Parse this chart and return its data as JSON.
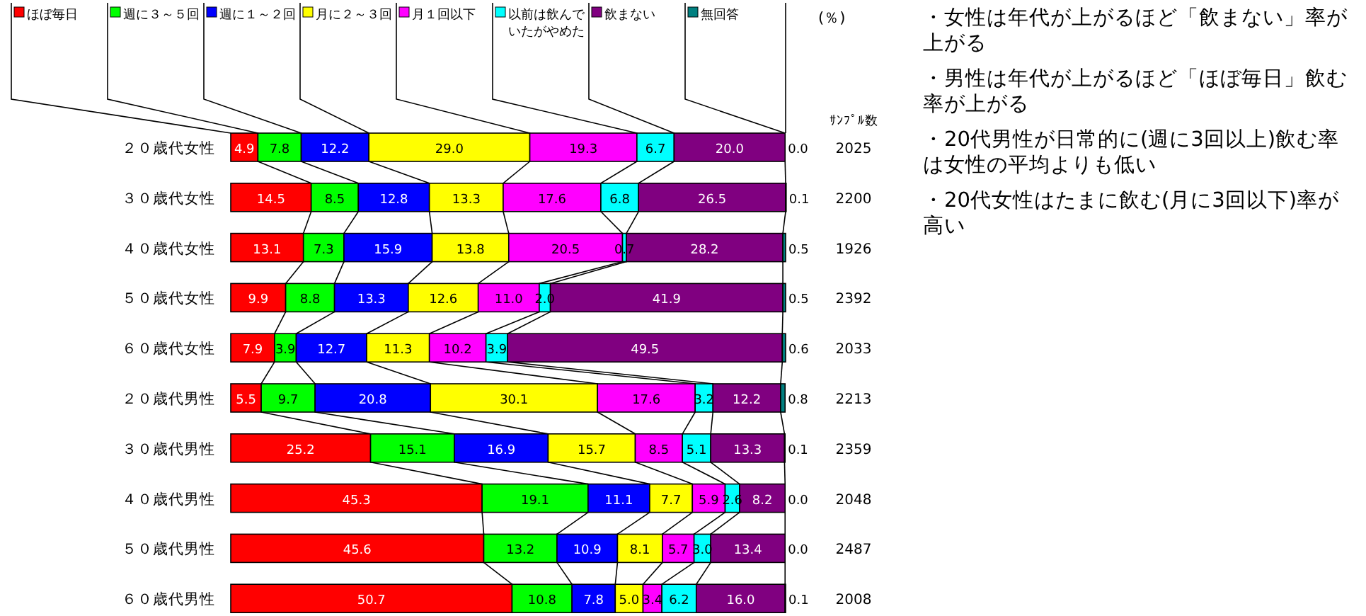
{
  "chart_data": {
    "type": "bar",
    "orientation": "horizontal",
    "stacked": true,
    "legend": "top",
    "tick_labels": "y",
    "xlim": [
      0,
      100
    ],
    "categories": [
      "２０歳代女性",
      "３０歳代女性",
      "４０歳代女性",
      "５０歳代女性",
      "６０歳代女性",
      "２０歳代男性",
      "３０歳代男性",
      "４０歳代男性",
      "５０歳代男性",
      "６０歳代男性"
    ],
    "series": [
      {
        "name": "ほぼ毎日",
        "color": "#ff0000",
        "values": [
          4.9,
          14.5,
          13.1,
          9.9,
          7.9,
          5.5,
          25.2,
          45.3,
          45.6,
          50.7
        ],
        "value_labels": [
          "4.9",
          "14.5",
          "13.1",
          "9.9",
          "7.9",
          "5.5",
          "25.2",
          "45.3",
          "45.6",
          "50.7"
        ]
      },
      {
        "name": "週に３～５回",
        "color": "#00ff00",
        "values": [
          7.8,
          8.5,
          7.3,
          8.8,
          3.9,
          9.7,
          15.1,
          19.1,
          13.2,
          10.8
        ],
        "value_labels": [
          "7.8",
          "8.5",
          "7.3",
          "8.8",
          "3.9",
          "9.7",
          "15.1",
          "19.1",
          "13.2",
          "10.8"
        ]
      },
      {
        "name": "週に１～２回",
        "color": "#0000ff",
        "values": [
          12.2,
          12.8,
          15.9,
          13.3,
          12.7,
          20.8,
          16.9,
          11.1,
          10.9,
          7.8
        ],
        "value_labels": [
          "12.2",
          "12.8",
          "15.9",
          "13.3",
          "12.7",
          "20.8",
          "16.9",
          "11.1",
          "10.9",
          "7.8"
        ]
      },
      {
        "name": "月に２～３回",
        "color": "#ffff00",
        "values": [
          29.0,
          13.3,
          13.8,
          12.6,
          11.3,
          30.1,
          15.7,
          7.7,
          8.1,
          5.0
        ],
        "value_labels": [
          "29.0",
          "13.3",
          "13.8",
          "12.6",
          "11.3",
          "30.1",
          "15.7",
          "7.7",
          "8.1",
          "5.0"
        ]
      },
      {
        "name": "月１回以下",
        "color": "#ff00ff",
        "values": [
          19.3,
          17.6,
          20.5,
          11.0,
          10.2,
          17.6,
          8.5,
          5.9,
          5.7,
          3.4
        ],
        "value_labels": [
          "19.3",
          "17.6",
          "20.5",
          "11.0",
          "10.2",
          "17.6",
          "8.5",
          "5.9",
          "5.7",
          "3.4"
        ]
      },
      {
        "name": "以前は飲んでいたがやめた",
        "color": "#00ffff",
        "values": [
          6.7,
          6.8,
          0.7,
          2.0,
          3.9,
          3.2,
          5.1,
          2.6,
          3.0,
          6.2
        ],
        "value_labels": [
          "6.7",
          "6.8",
          "0.7",
          "2.0",
          "3.9",
          "3.2",
          "5.1",
          "2.6",
          "3.0",
          "6.2"
        ]
      },
      {
        "name": "飲まない",
        "color": "#800080",
        "values": [
          20.0,
          26.5,
          28.2,
          41.9,
          49.5,
          12.2,
          13.3,
          8.2,
          13.4,
          16.0
        ],
        "value_labels": [
          "20.0",
          "26.5",
          "28.2",
          "41.9",
          "49.5",
          "12.2",
          "13.3",
          "8.2",
          "13.4",
          "16.0"
        ]
      },
      {
        "name": "無回答",
        "color": "#008080",
        "values": [
          0.0,
          0.1,
          0.5,
          0.5,
          0.6,
          0.8,
          0.1,
          0.0,
          0.0,
          0.1
        ],
        "value_labels": [
          "0.0",
          "0.1",
          "0.5",
          "0.5",
          "0.6",
          "0.8",
          "0.1",
          "0.0",
          "0.0",
          "0.1"
        ]
      }
    ],
    "annotations": [
      "(％)",
      "ｻﾝﾌﾟﾙ数",
      "2025",
      "2200",
      "1926",
      "2392",
      "2033",
      "2213",
      "2359",
      "2048",
      "2487",
      "2008",
      "・女性は年代が上がるほど「飲まない」率が上がる",
      "・男性は年代が上がるほど「ほぼ毎日」飲む率が上がる",
      "・20代男性が日常的に(週に3回以上)飲む率は女性の平均よりも低い",
      "・20代女性はたまに飲む(月に3回以下)率が高い"
    ]
  }
}
